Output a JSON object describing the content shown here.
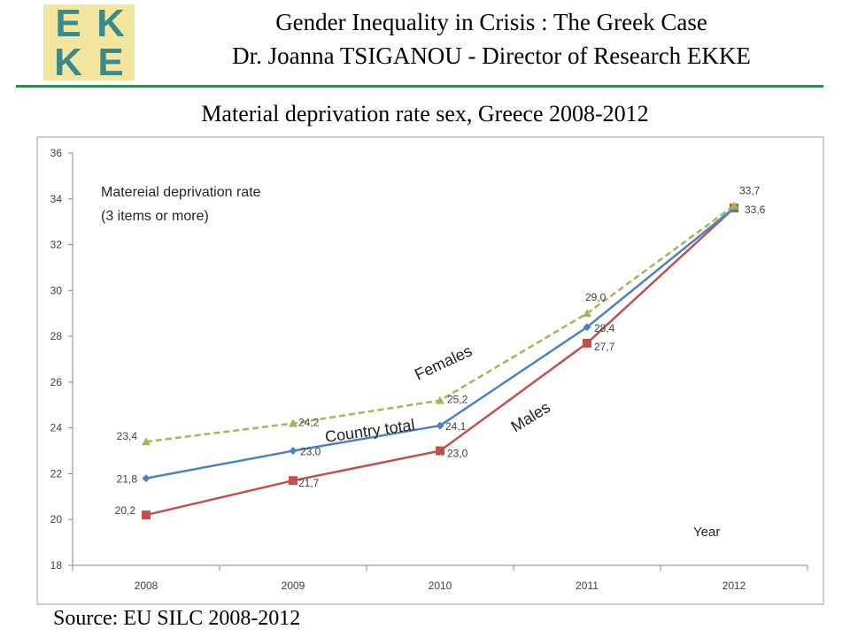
{
  "header": {
    "logo_letters": [
      "E",
      "K",
      "K",
      "E"
    ],
    "title_line1": "Gender Inequality in Crisis : The Greek Case",
    "title_line2": "Dr. Joanna TSIGANOU - Director of Research EKKE"
  },
  "slide_title": "Material deprivation rate sex, Greece 2008-2012",
  "source": "Source: EU SILC 2008-2012",
  "colors": {
    "rule": "#2e8b57",
    "logo_bg": "#f2e6a0",
    "logo_text": "#3a8a8d",
    "females": "#9bbb59",
    "country_total": "#4f81bd",
    "males": "#c0504d"
  },
  "chart_data": {
    "type": "line",
    "categories": [
      "2008",
      "2009",
      "2010",
      "2011",
      "2012"
    ],
    "ylim": [
      18,
      36
    ],
    "yticks": [
      "18",
      "20",
      "22",
      "24",
      "26",
      "28",
      "30",
      "32",
      "34",
      "36"
    ],
    "xlabel": "Year",
    "annotation_line1": "Matereial deprivation rate",
    "annotation_line2": "(3 items or more)",
    "grid": false,
    "series": [
      {
        "name": "Females",
        "style": "dashed",
        "marker": "triangle",
        "values": [
          23.4,
          24.2,
          25.2,
          29.0,
          33.7
        ],
        "labels": [
          "23,4",
          "24,2",
          "25,2",
          "29,0",
          "33,7"
        ]
      },
      {
        "name": "Country total",
        "style": "solid",
        "marker": "diamond",
        "values": [
          21.8,
          23.0,
          24.1,
          28.4,
          33.6
        ],
        "labels": [
          "21,8",
          "23,0",
          "24,1",
          "28,4",
          ""
        ]
      },
      {
        "name": "Males",
        "style": "solid",
        "marker": "square",
        "values": [
          20.2,
          21.7,
          23.0,
          27.7,
          33.6
        ],
        "labels": [
          "20,2",
          "21,7",
          "23,0",
          "27,7",
          "33,6"
        ]
      }
    ]
  }
}
